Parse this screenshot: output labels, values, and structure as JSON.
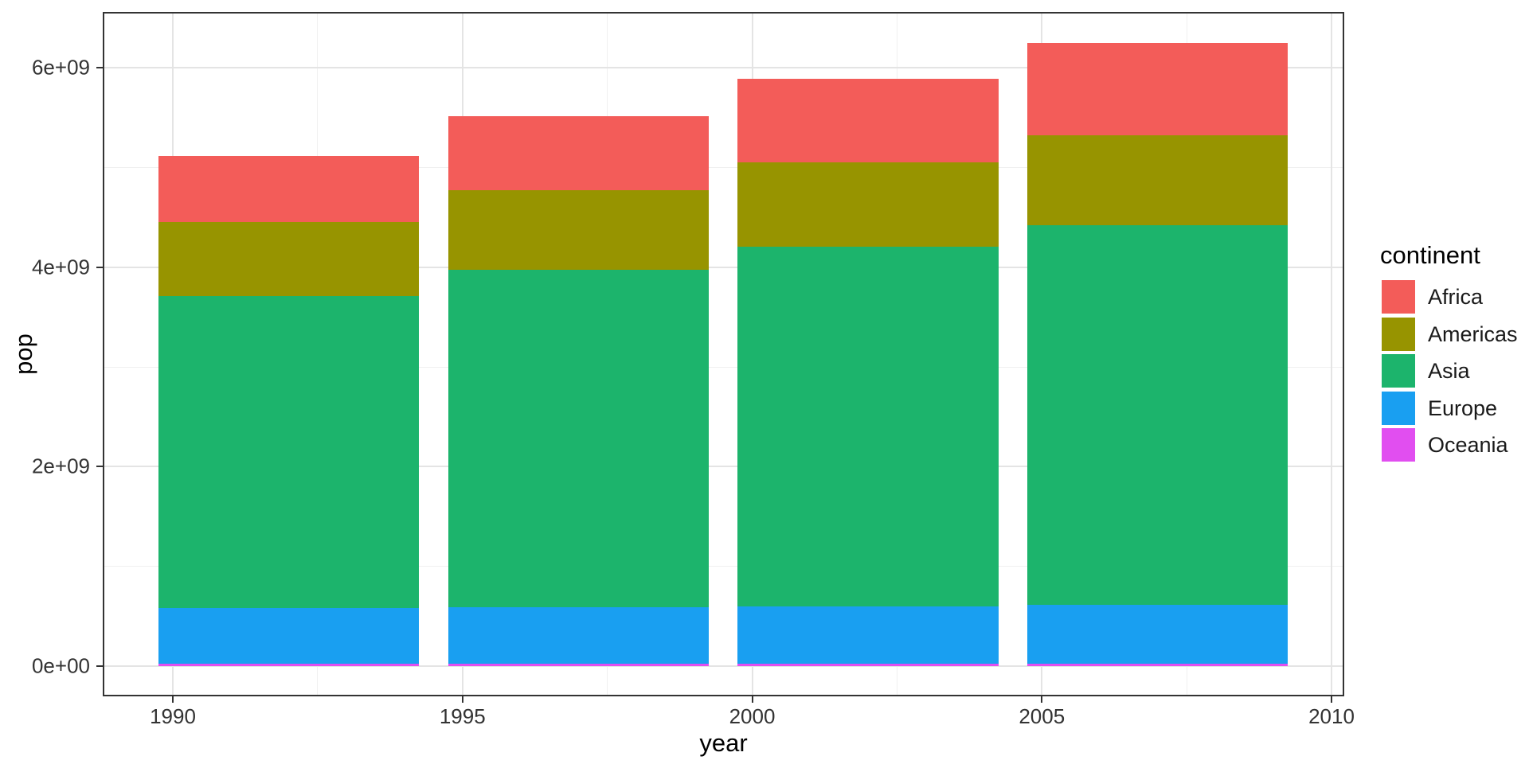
{
  "chart_data": {
    "type": "bar",
    "stacked": true,
    "title": "",
    "xlabel": "year",
    "ylabel": "pop",
    "categories": [
      1992,
      1997,
      2002,
      2007
    ],
    "series": [
      {
        "name": "Africa",
        "color": "#F35C59",
        "values": [
          659081517,
          743832984,
          833723916,
          929539692
        ]
      },
      {
        "name": "Americas",
        "color": "#979400",
        "values": [
          739274104,
          796900410,
          849772762,
          898871184
        ]
      },
      {
        "name": "Asia",
        "color": "#1CB46C",
        "values": [
          3133292191,
          3383285500,
          3601802203,
          3811953827
        ]
      },
      {
        "name": "Europe",
        "color": "#199FF1",
        "values": [
          558142797,
          568944148,
          578223869,
          586098529
        ]
      },
      {
        "name": "Oceania",
        "color": "#E14EF0",
        "values": [
          20919651,
          22241430,
          23454829,
          24549947
        ]
      }
    ],
    "stack_order_bottom_to_top": [
      "Oceania",
      "Europe",
      "Asia",
      "Americas",
      "Africa"
    ],
    "bar_width_years": 4.5,
    "x_ticks": [
      {
        "value": 1990,
        "label": "1990"
      },
      {
        "value": 1995,
        "label": "1995"
      },
      {
        "value": 2000,
        "label": "2000"
      },
      {
        "value": 2005,
        "label": "2005"
      },
      {
        "value": 2010,
        "label": "2010"
      }
    ],
    "y_ticks": [
      {
        "value": 0,
        "label": "0e+00"
      },
      {
        "value": 2000000000,
        "label": "2e+09"
      },
      {
        "value": 4000000000,
        "label": "4e+09"
      },
      {
        "value": 6000000000,
        "label": "6e+09"
      }
    ],
    "x_minor_ticks": [
      1992.5,
      1997.5,
      2002.5,
      2007.5
    ],
    "y_minor_ticks": [
      1000000000,
      3000000000,
      5000000000
    ],
    "xlim": [
      1988.78,
      2010.23
    ],
    "ylim": [
      0,
      6251013179
    ],
    "grid": true,
    "legend_position": "right"
  },
  "legend": {
    "title": "continent"
  },
  "colors": {
    "background": "#FFFFFF",
    "grid_major": "#E4E4E4",
    "grid_minor": "#F0F0F0",
    "panel_border": "#333333",
    "tick": "#333333",
    "tick_label": "#333333",
    "title_text": "#000000"
  }
}
